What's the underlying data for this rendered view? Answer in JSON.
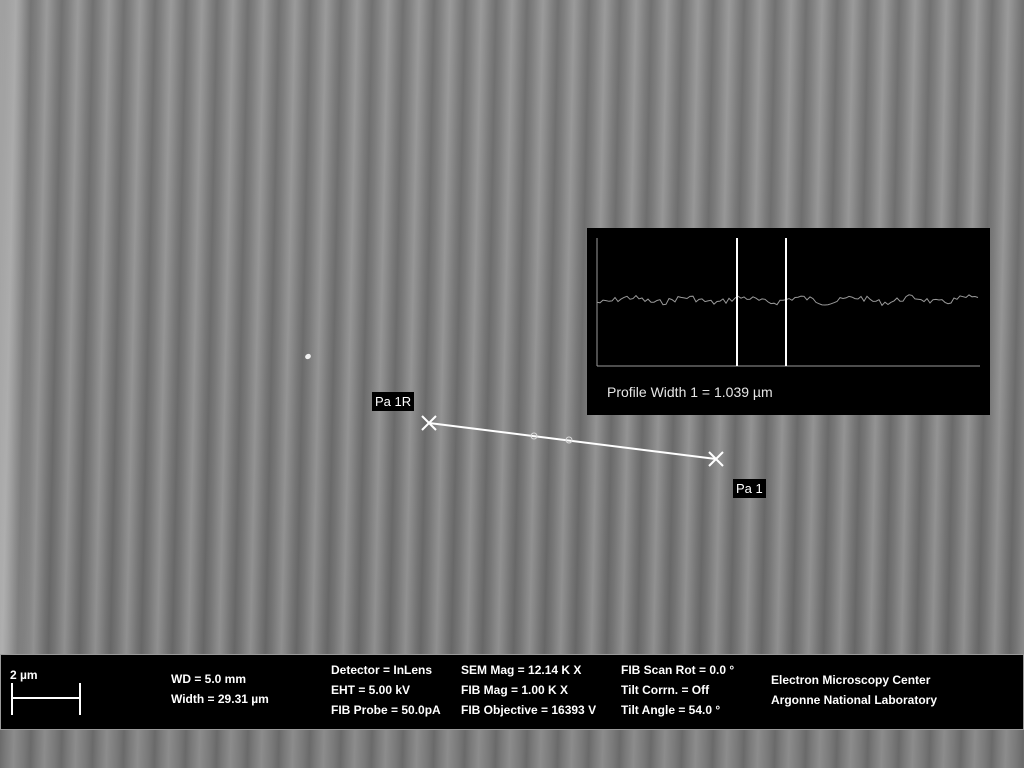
{
  "markers": {
    "start_label": "Pa 1R",
    "end_label": "Pa 1"
  },
  "profile": {
    "caption": "Profile Width 1 = 1.039 µm"
  },
  "info": {
    "scale_bar": "2 µm",
    "wd": "WD =  5.0 mm",
    "width": "Width = 29.31 µm",
    "detector": "Detector = InLens",
    "eht": "EHT =  5.00 kV",
    "fib_probe": "FIB Probe = 50.0pA",
    "sem_mag": "SEM Mag =  12.14 K X",
    "fib_mag": "FIB Mag =   1.00 K X",
    "fib_objective": "FIB Objective = 16393 V",
    "fib_scan_rot": "FIB Scan Rot =   0.0 °",
    "tilt_corrn": "Tilt Corrn. = Off",
    "tilt_angle": "Tilt Angle =  54.0 °",
    "org_line1": "Electron Microscopy Center",
    "org_line2": "Argonne National Laboratory"
  },
  "colors": {
    "overlay": "#ffffff",
    "panel_bg": "#000000",
    "profile_trace": "#9a9a9a"
  }
}
